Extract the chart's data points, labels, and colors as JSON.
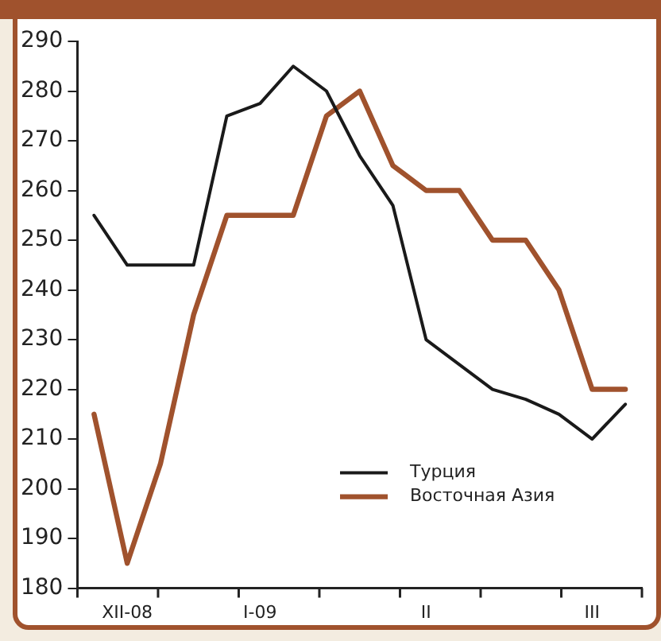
{
  "chart_data": {
    "type": "line",
    "categories": [
      null,
      "XII-08",
      null,
      null,
      null,
      "I-09",
      null,
      null,
      null,
      null,
      "II",
      null,
      null,
      null,
      null,
      "III",
      null
    ],
    "series": [
      {
        "name": "Турция",
        "color": "#1a1a1a",
        "values": [
          255,
          245,
          245,
          245,
          275,
          277.5,
          285,
          280,
          267,
          257,
          230,
          225,
          220,
          218,
          215,
          210,
          217
        ]
      },
      {
        "name": "Восточная Азия",
        "color": "#a0522d",
        "values": [
          215,
          185,
          205,
          235,
          255,
          255,
          255,
          275,
          280,
          265,
          260,
          260,
          250,
          250,
          240,
          220,
          220
        ]
      }
    ],
    "ylim": [
      180,
      290
    ],
    "yticks": [
      180,
      190,
      200,
      210,
      220,
      230,
      240,
      250,
      260,
      270,
      280,
      290
    ],
    "grid": false,
    "legend": "bottom right",
    "marker": "none",
    "line_style": "solid"
  }
}
